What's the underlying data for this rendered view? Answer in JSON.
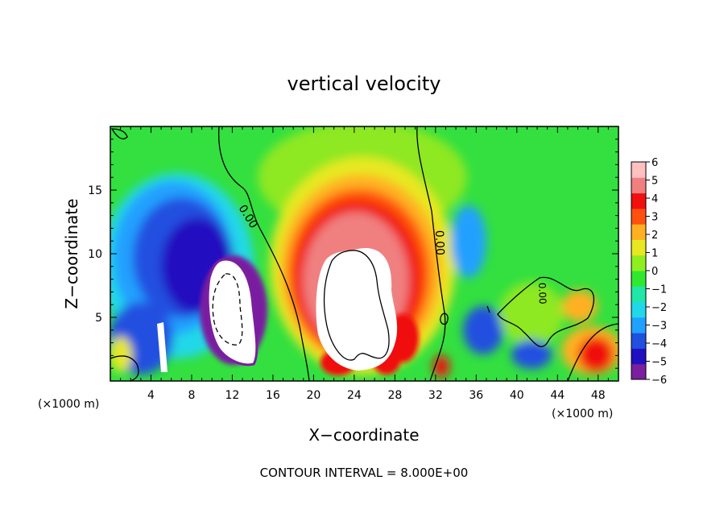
{
  "chart_data": {
    "type": "heatmap",
    "title": "vertical velocity",
    "xlabel": "X−coordinate",
    "ylabel": "Z−coordinate",
    "x_unit_left": "(×1000 m)",
    "x_unit_right": "(×1000 m)",
    "xlim": [
      0,
      50
    ],
    "ylim": [
      0,
      20
    ],
    "xticks": [
      4,
      8,
      12,
      16,
      20,
      24,
      28,
      32,
      36,
      40,
      44,
      48
    ],
    "yticks": [
      5,
      10,
      15
    ],
    "colorbar": {
      "min": -6,
      "max": 6,
      "ticks": [
        "6",
        "5",
        "4",
        "3",
        "2",
        "1",
        "0",
        "−1",
        "−2",
        "−3",
        "−4",
        "−5",
        "−6"
      ],
      "colors": [
        "#7a1fa0",
        "#2010c0",
        "#2050e0",
        "#20a0ff",
        "#20d8e8",
        "#20e6a8",
        "#30e830",
        "#90ee20",
        "#e8e820",
        "#ffb020",
        "#ff5010",
        "#f01010",
        "#f08080",
        "#ffc0c0"
      ]
    },
    "contour_labels": [
      "0.00",
      "0.00",
      "0.00"
    ],
    "contour_interval_text": "CONTOUR INTERVAL = 8.000E+00",
    "features": [
      {
        "kind": "updraft",
        "x": 23,
        "z": 9,
        "peak": 6
      },
      {
        "kind": "downdraft",
        "x": 10,
        "z": 9,
        "peak": -6
      },
      {
        "kind": "downdraft",
        "x": 6,
        "z": 3,
        "peak": -5
      },
      {
        "kind": "downdraft",
        "x": 35,
        "z": 9,
        "peak": -3
      },
      {
        "kind": "downdraft",
        "x": 36,
        "z": 3,
        "peak": -4
      },
      {
        "kind": "updraft",
        "x": 47,
        "z": 2,
        "peak": 5
      }
    ]
  }
}
